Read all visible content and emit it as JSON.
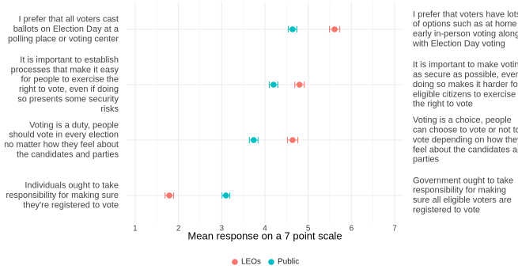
{
  "chart_data": {
    "type": "dot-errorbar",
    "x_label": "Mean response on a 7 point scale",
    "left_labels": [
      [
        "I prefer that all voters cast",
        "ballots on Election Day at a",
        "polling place or voting center"
      ],
      [
        "It is important to establish",
        "processes that make it easy",
        "for people to exercise the",
        "right to vote, even if doing",
        "so presents some security",
        "risks"
      ],
      [
        "Voting is a duty, people",
        "should vote in every election",
        "no matter how they feel about",
        "the candidates and parties"
      ],
      [
        "Individuals ought to take",
        "responsibility for making sure",
        "they're registered to vote"
      ]
    ],
    "right_labels": [
      [
        "I prefer that voters have lots",
        "of options such as at home or",
        "early in-person voting along",
        "with Election Day voting"
      ],
      [
        "It is important to make voting",
        "as secure as possible, even if",
        "doing so makes it harder for",
        "eligible citizens to exercise",
        "the right to vote"
      ],
      [
        "Voting is a choice, people",
        "can choose to vote or not to",
        "vote depending on how they",
        "feel about the candidates and",
        "parties"
      ],
      [
        "Government ought to take",
        "responsibility for making",
        "sure all eligible voters are",
        "registered to vote"
      ]
    ],
    "series": [
      {
        "name": "LEOs",
        "color": "#F8766D",
        "values": [
          5.61,
          4.8,
          4.64,
          1.79
        ],
        "errors": [
          0.12,
          0.11,
          0.12,
          0.1
        ]
      },
      {
        "name": "Public",
        "color": "#00BFC4",
        "values": [
          4.64,
          4.2,
          3.74,
          3.1
        ],
        "errors": [
          0.1,
          0.1,
          0.1,
          0.09
        ]
      }
    ],
    "xlim": [
      0.8,
      7.2
    ],
    "xticks": [
      1,
      2,
      3,
      4,
      5,
      6,
      7
    ],
    "grid": true,
    "legend": "bottom"
  }
}
